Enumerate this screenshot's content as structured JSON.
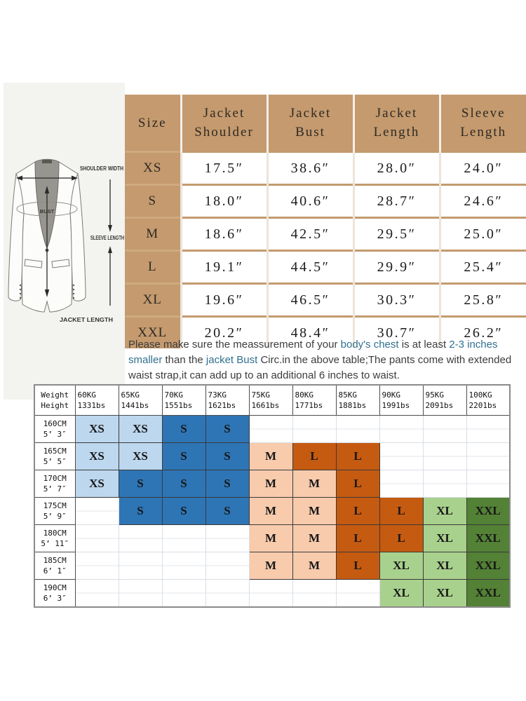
{
  "colors": {
    "tan": "#c49a6e",
    "highlight_text": "#31708f",
    "light_blue": "#bdd7ee",
    "blue": "#2e75b6",
    "peach": "#f8cbad",
    "orange": "#c55a11",
    "light_green": "#a9d18e",
    "dark_green": "#538135"
  },
  "diagram": {
    "labels": {
      "shoulder": "SHOULDER WIDTH",
      "bust": "BUST",
      "sleeve": "SLEEVE LENGTH",
      "length": "JACKET LENGTH"
    }
  },
  "size_table": {
    "header": {
      "size": "Size",
      "cols": [
        [
          "Jacket",
          "Shoulder"
        ],
        [
          "Jacket",
          "Bust"
        ],
        [
          "Jacket",
          "Length"
        ],
        [
          "Sleeve",
          "Length"
        ]
      ]
    },
    "rows": [
      {
        "size": "XS",
        "values": [
          "17.5″",
          "38.6″",
          "28.0″",
          "24.0″"
        ]
      },
      {
        "size": "S",
        "values": [
          "18.0″",
          "40.6″",
          "28.7″",
          "24.6″"
        ]
      },
      {
        "size": "M",
        "values": [
          "18.6″",
          "42.5″",
          "29.5″",
          "25.0″"
        ]
      },
      {
        "size": "L",
        "values": [
          "19.1″",
          "44.5″",
          "29.9″",
          "25.4″"
        ]
      },
      {
        "size": "XL",
        "values": [
          "19.6″",
          "46.5″",
          "30.3″",
          "25.8″"
        ]
      },
      {
        "size": "XXL",
        "values": [
          "20.2″",
          "48.4″",
          "30.7″",
          "26.2″"
        ]
      }
    ]
  },
  "note": {
    "segments": [
      {
        "text": "Please make sure the meassurement of your ",
        "hl": false
      },
      {
        "text": "body's chest",
        "hl": true
      },
      {
        "text": " is at least ",
        "hl": false
      },
      {
        "text": "2-3 inches smaller",
        "hl": true
      },
      {
        "text": " than the ",
        "hl": false
      },
      {
        "text": "jacket Bust",
        "hl": true
      },
      {
        "text": " Circ.in the above table;The pants come with extended waist strap,it can add up to an additional 6 inches to waist.",
        "hl": false
      }
    ]
  },
  "fit_table": {
    "corner_top": "Weight",
    "corner_bottom": "Height",
    "weights": [
      [
        "60KG",
        "1331bs"
      ],
      [
        "65KG",
        "1441bs"
      ],
      [
        "70KG",
        "1551bs"
      ],
      [
        "73KG",
        "1621bs"
      ],
      [
        "75KG",
        "1661bs"
      ],
      [
        "80KG",
        "1771bs"
      ],
      [
        "85KG",
        "1881bs"
      ],
      [
        "90KG",
        "1991bs"
      ],
      [
        "95KG",
        "2091bs"
      ],
      [
        "100KG",
        "2201bs"
      ]
    ],
    "heights": [
      [
        "160CM",
        "5’ 3″"
      ],
      [
        "165CM",
        "5’ 5″"
      ],
      [
        "170CM",
        "5’ 7″"
      ],
      [
        "175CM",
        "5’ 9″"
      ],
      [
        "180CM",
        "5’ 11″"
      ],
      [
        "185CM",
        "6’ 1″"
      ],
      [
        "190CM",
        "6’ 3″"
      ]
    ],
    "matrix": [
      [
        "XS:lb",
        "XS:lb",
        "S:b",
        "S:b",
        "",
        "",
        "",
        "",
        "",
        ""
      ],
      [
        "XS:lb",
        "XS:lb",
        "S:b",
        "S:b",
        "M:p",
        "L:o",
        "L:o",
        "",
        "",
        ""
      ],
      [
        "XS:lb",
        "S:b",
        "S:b",
        "S:b",
        "M:p",
        "M:p",
        "L:o",
        "",
        "",
        ""
      ],
      [
        "",
        "S:b",
        "S:b",
        "S:b",
        "M:p",
        "M:p",
        "L:o",
        "L:o",
        "XL:g",
        "XXL:dg"
      ],
      [
        "",
        "",
        "",
        "",
        "M:p",
        "M:p",
        "L:o",
        "L:o",
        "XL:g",
        "XXL:dg"
      ],
      [
        "",
        "",
        "",
        "",
        "M:p",
        "M:p",
        "L:o",
        "XL:g",
        "XL:g",
        "XXL:dg"
      ],
      [
        "",
        "",
        "",
        "",
        "",
        "",
        "",
        "XL:g",
        "XL:g",
        "XXL:dg"
      ]
    ],
    "color_classes": {
      "lb": "light_blue",
      "b": "blue",
      "p": "peach",
      "o": "orange",
      "g": "light_green",
      "dg": "dark_green"
    }
  }
}
